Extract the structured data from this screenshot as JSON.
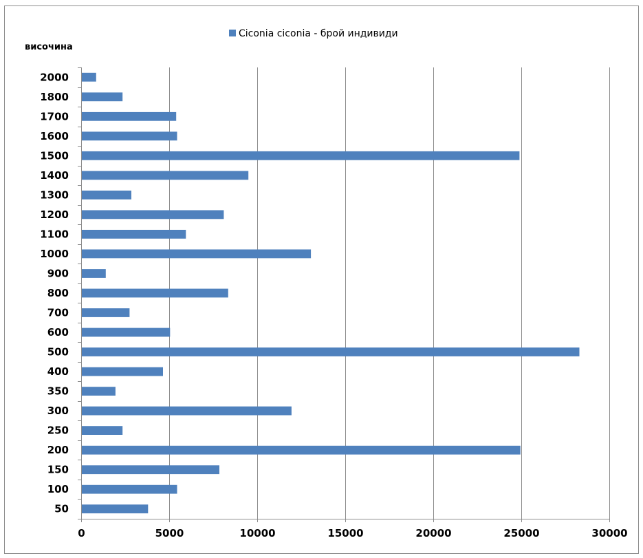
{
  "chart_data": {
    "type": "bar",
    "orientation": "horizontal",
    "ylabel": "височина",
    "categories": [
      "50",
      "100",
      "150",
      "200",
      "250",
      "300",
      "350",
      "400",
      "500",
      "600",
      "700",
      "800",
      "900",
      "1000",
      "1100",
      "1200",
      "1300",
      "1400",
      "1500",
      "1600",
      "1700",
      "1800",
      "2000"
    ],
    "series": [
      {
        "name": "Ciconia ciconia - брой индивиди",
        "values": [
          3800,
          5450,
          7850,
          24950,
          2350,
          11950,
          1950,
          4650,
          28300,
          5050,
          2750,
          8350,
          1400,
          13050,
          5950,
          8100,
          2850,
          9500,
          24900,
          5450,
          5400,
          2350,
          850
        ]
      }
    ],
    "xlim": [
      0,
      30000
    ],
    "xticks": [
      0,
      5000,
      10000,
      15000,
      20000,
      25000,
      30000
    ],
    "grid": "vertical major gridlines",
    "legend_position": "top",
    "bar_color": "#4f81bd",
    "grid_color": "#8c8c8c"
  }
}
